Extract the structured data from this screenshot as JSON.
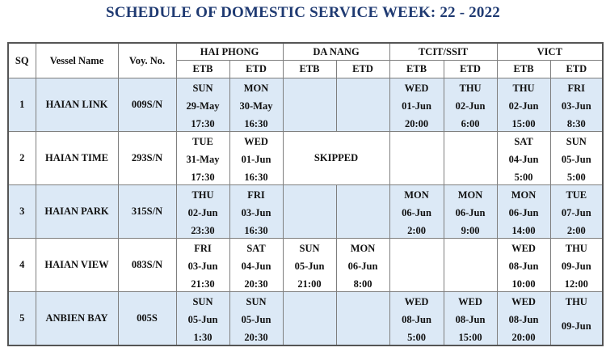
{
  "title": "SCHEDULE OF DOMESTIC SERVICE WEEK: 22 - 2022",
  "headers": {
    "sq": "SQ",
    "vessel": "Vessel Name",
    "voy": "Voy. No.",
    "ports": [
      "HAI PHONG",
      "DA NANG",
      "TCIT/SSIT",
      "VICT"
    ],
    "etb": "ETB",
    "etd": "ETD"
  },
  "rows": [
    {
      "sq": "1",
      "vessel": "HAIAN LINK",
      "voy": "009S/N",
      "hp": [
        [
          "SUN",
          "29-May",
          "17:30"
        ],
        [
          "MON",
          "30-May",
          "16:30"
        ]
      ],
      "dn": [
        [
          "",
          "",
          ""
        ],
        [
          "",
          "",
          ""
        ]
      ],
      "tc": [
        [
          "WED",
          "01-Jun",
          "20:00"
        ],
        [
          "THU",
          "02-Jun",
          "6:00"
        ]
      ],
      "vi": [
        [
          "THU",
          "02-Jun",
          "15:00"
        ],
        [
          "FRI",
          "03-Jun",
          "8:30"
        ]
      ]
    },
    {
      "sq": "2",
      "vessel": "HAIAN TIME",
      "voy": "293S/N",
      "hp": [
        [
          "TUE",
          "31-May",
          "17:30"
        ],
        [
          "WED",
          "01-Jun",
          "16:30"
        ]
      ],
      "dn_skipped": "SKIPPED",
      "tc": [
        [
          "",
          "",
          ""
        ],
        [
          "",
          "",
          ""
        ]
      ],
      "vi": [
        [
          "SAT",
          "04-Jun",
          "5:00"
        ],
        [
          "SUN",
          "05-Jun",
          "5:00"
        ]
      ]
    },
    {
      "sq": "3",
      "vessel": "HAIAN PARK",
      "voy": "315S/N",
      "hp": [
        [
          "THU",
          "02-Jun",
          "23:30"
        ],
        [
          "FRI",
          "03-Jun",
          "16:30"
        ]
      ],
      "dn": [
        [
          "",
          "",
          ""
        ],
        [
          "",
          "",
          ""
        ]
      ],
      "tc": [
        [
          "MON",
          "06-Jun",
          "2:00"
        ],
        [
          "MON",
          "06-Jun",
          "9:00"
        ]
      ],
      "vi": [
        [
          "MON",
          "06-Jun",
          "14:00"
        ],
        [
          "TUE",
          "07-Jun",
          "2:00"
        ]
      ]
    },
    {
      "sq": "4",
      "vessel": "HAIAN VIEW",
      "voy": "083S/N",
      "hp": [
        [
          "FRI",
          "03-Jun",
          "21:30"
        ],
        [
          "SAT",
          "04-Jun",
          "20:30"
        ]
      ],
      "dn": [
        [
          "SUN",
          "05-Jun",
          "21:00"
        ],
        [
          "MON",
          "06-Jun",
          "8:00"
        ]
      ],
      "tc": [
        [
          "",
          "",
          ""
        ],
        [
          "",
          "",
          ""
        ]
      ],
      "vi": [
        [
          "WED",
          "08-Jun",
          "10:00"
        ],
        [
          "THU",
          "09-Jun",
          "12:00"
        ]
      ]
    },
    {
      "sq": "5",
      "vessel": "ANBIEN BAY",
      "voy": "005S",
      "hp": [
        [
          "SUN",
          "05-Jun",
          "1:30"
        ],
        [
          "SUN",
          "05-Jun",
          "20:30"
        ]
      ],
      "dn": [
        [
          "",
          "",
          ""
        ],
        [
          "",
          "",
          ""
        ]
      ],
      "tc": [
        [
          "WED",
          "08-Jun",
          "5:00"
        ],
        [
          "WED",
          "08-Jun",
          "15:00"
        ]
      ],
      "vi": [
        [
          "WED",
          "08-Jun",
          "20:00"
        ],
        [
          "THU",
          "09-Jun",
          ""
        ]
      ]
    }
  ]
}
